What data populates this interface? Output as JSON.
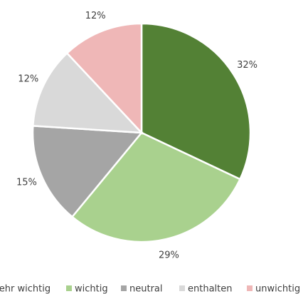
{
  "chart_data": {
    "type": "pie",
    "categories": [
      "sehr wichtig",
      "wichtig",
      "neutral",
      "enthalten",
      "unwichtig"
    ],
    "values": [
      32,
      29,
      15,
      12,
      12
    ],
    "value_labels": [
      "32%",
      "29%",
      "15%",
      "12%",
      "12%"
    ],
    "colors": [
      "#538135",
      "#a9d18e",
      "#a5a5a5",
      "#d9d9d9",
      "#efb7b7"
    ],
    "legend": "bottom"
  }
}
